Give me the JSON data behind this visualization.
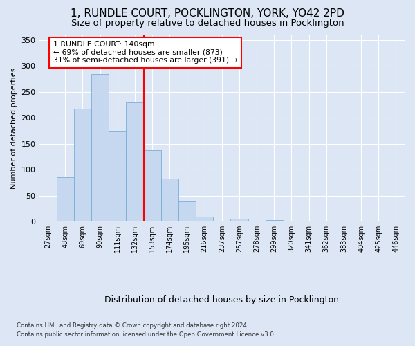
{
  "title1": "1, RUNDLE COURT, POCKLINGTON, YORK, YO42 2PD",
  "title2": "Size of property relative to detached houses in Pocklington",
  "xlabel": "Distribution of detached houses by size in Pocklington",
  "ylabel": "Number of detached properties",
  "categories": [
    "27sqm",
    "48sqm",
    "69sqm",
    "90sqm",
    "111sqm",
    "132sqm",
    "153sqm",
    "174sqm",
    "195sqm",
    "216sqm",
    "237sqm",
    "257sqm",
    "278sqm",
    "299sqm",
    "320sqm",
    "341sqm",
    "362sqm",
    "383sqm",
    "404sqm",
    "425sqm",
    "446sqm"
  ],
  "values": [
    1,
    85,
    218,
    284,
    174,
    230,
    138,
    83,
    39,
    10,
    1,
    6,
    1,
    3,
    1,
    1,
    1,
    1,
    1,
    1,
    1
  ],
  "bar_color": "#c5d8f0",
  "bar_edge_color": "#7aaed6",
  "bg_color": "#dce6f5",
  "vline_color": "red",
  "annotation_text": "1 RUNDLE COURT: 140sqm\n← 69% of detached houses are smaller (873)\n31% of semi-detached houses are larger (391) →",
  "annotation_box_color": "white",
  "annotation_box_edge": "red",
  "footnote1": "Contains HM Land Registry data © Crown copyright and database right 2024.",
  "footnote2": "Contains public sector information licensed under the Open Government Licence v3.0.",
  "ylim": [
    0,
    360
  ],
  "yticks": [
    0,
    50,
    100,
    150,
    200,
    250,
    300,
    350
  ],
  "vline_x_index": 5,
  "title1_fontsize": 11,
  "title2_fontsize": 9.5
}
